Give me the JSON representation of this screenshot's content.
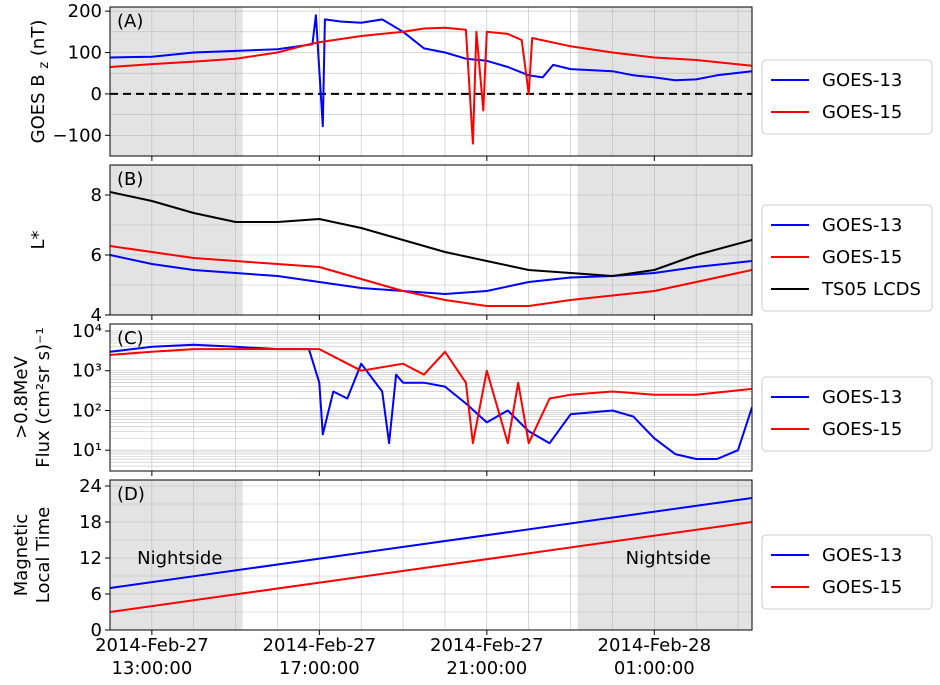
{
  "chart_data": [
    {
      "type": "line",
      "panel_label": "(A)",
      "ylabel": "GOES B",
      "ylabel_sub": "z",
      "ylabel_unit": "(nT)",
      "xlim": [
        "2014-02-27T12:00",
        "2014-02-28T03:20"
      ],
      "ylim": [
        -150,
        210
      ],
      "yticks": [
        200,
        100,
        0,
        -100
      ],
      "ytick_labels": [
        "200",
        "100",
        "0",
        "−100"
      ],
      "reference_line": {
        "y": 0,
        "style": "dashed",
        "color": "#000000"
      },
      "shaded_regions": [
        [
          "2014-02-27T12:00",
          "2014-02-27T15:10"
        ],
        [
          "2014-02-27T23:10",
          "2014-02-28T03:20"
        ]
      ],
      "legend": "right",
      "series": [
        {
          "name": "GOES-13",
          "color": "#0000ff",
          "points": [
            [
              "2014-02-27T12:00",
              88
            ],
            [
              "2014-02-27T13:00",
              90
            ],
            [
              "2014-02-27T14:00",
              100
            ],
            [
              "2014-02-27T15:00",
              104
            ],
            [
              "2014-02-27T16:00",
              108
            ],
            [
              "2014-02-27T16:50",
              120
            ],
            [
              "2014-02-27T16:55",
              190
            ],
            [
              "2014-02-27T17:05",
              -78
            ],
            [
              "2014-02-27T17:08",
              180
            ],
            [
              "2014-02-27T17:30",
              175
            ],
            [
              "2014-02-27T18:00",
              172
            ],
            [
              "2014-02-27T18:30",
              180
            ],
            [
              "2014-02-27T19:00",
              150
            ],
            [
              "2014-02-27T19:30",
              110
            ],
            [
              "2014-02-27T20:00",
              100
            ],
            [
              "2014-02-27T20:30",
              85
            ],
            [
              "2014-02-27T21:00",
              80
            ],
            [
              "2014-02-27T21:30",
              65
            ],
            [
              "2014-02-27T22:00",
              45
            ],
            [
              "2014-02-27T22:20",
              40
            ],
            [
              "2014-02-27T22:35",
              70
            ],
            [
              "2014-02-27T23:00",
              60
            ],
            [
              "2014-02-28T00:00",
              55
            ],
            [
              "2014-02-28T00:30",
              45
            ],
            [
              "2014-02-28T01:00",
              40
            ],
            [
              "2014-02-28T01:30",
              33
            ],
            [
              "2014-02-28T02:00",
              35
            ],
            [
              "2014-02-28T02:30",
              45
            ],
            [
              "2014-02-28T03:20",
              55
            ]
          ]
        },
        {
          "name": "GOES-15",
          "color": "#ff0000",
          "points": [
            [
              "2014-02-27T12:00",
              65
            ],
            [
              "2014-02-27T13:00",
              72
            ],
            [
              "2014-02-27T14:00",
              78
            ],
            [
              "2014-02-27T15:00",
              85
            ],
            [
              "2014-02-27T16:00",
              100
            ],
            [
              "2014-02-27T16:45",
              120
            ],
            [
              "2014-02-27T17:00",
              125
            ],
            [
              "2014-02-27T18:00",
              140
            ],
            [
              "2014-02-27T19:00",
              150
            ],
            [
              "2014-02-27T19:30",
              158
            ],
            [
              "2014-02-27T20:00",
              160
            ],
            [
              "2014-02-27T20:30",
              155
            ],
            [
              "2014-02-27T20:40",
              -120
            ],
            [
              "2014-02-27T20:45",
              150
            ],
            [
              "2014-02-27T20:55",
              -40
            ],
            [
              "2014-02-27T21:00",
              150
            ],
            [
              "2014-02-27T21:30",
              145
            ],
            [
              "2014-02-27T21:50",
              130
            ],
            [
              "2014-02-27T22:00",
              0
            ],
            [
              "2014-02-27T22:05",
              135
            ],
            [
              "2014-02-27T23:00",
              115
            ],
            [
              "2014-02-28T00:00",
              100
            ],
            [
              "2014-02-28T01:00",
              88
            ],
            [
              "2014-02-28T02:00",
              82
            ],
            [
              "2014-02-28T03:20",
              68
            ]
          ]
        }
      ]
    },
    {
      "type": "line",
      "panel_label": "(B)",
      "ylabel": "L*",
      "xlim": [
        "2014-02-27T12:00",
        "2014-02-28T03:20"
      ],
      "ylim": [
        4,
        9
      ],
      "yticks": [
        8,
        6,
        4
      ],
      "ytick_labels": [
        "8",
        "6",
        "4"
      ],
      "shaded_regions": [
        [
          "2014-02-27T12:00",
          "2014-02-27T15:10"
        ],
        [
          "2014-02-27T23:10",
          "2014-02-28T03:20"
        ]
      ],
      "legend": "right",
      "series": [
        {
          "name": "GOES-13",
          "color": "#0000ff",
          "points": [
            [
              "2014-02-27T12:00",
              6.0
            ],
            [
              "2014-02-27T13:00",
              5.7
            ],
            [
              "2014-02-27T14:00",
              5.5
            ],
            [
              "2014-02-27T15:00",
              5.4
            ],
            [
              "2014-02-27T16:00",
              5.3
            ],
            [
              "2014-02-27T17:00",
              5.1
            ],
            [
              "2014-02-27T18:00",
              4.9
            ],
            [
              "2014-02-27T19:00",
              4.8
            ],
            [
              "2014-02-27T20:00",
              4.7
            ],
            [
              "2014-02-27T21:00",
              4.8
            ],
            [
              "2014-02-27T22:00",
              5.1
            ],
            [
              "2014-02-27T23:00",
              5.25
            ],
            [
              "2014-02-28T00:00",
              5.3
            ],
            [
              "2014-02-28T01:00",
              5.4
            ],
            [
              "2014-02-28T02:00",
              5.6
            ],
            [
              "2014-02-28T03:20",
              5.8
            ]
          ]
        },
        {
          "name": "GOES-15",
          "color": "#ff0000",
          "points": [
            [
              "2014-02-27T12:00",
              6.3
            ],
            [
              "2014-02-27T13:00",
              6.1
            ],
            [
              "2014-02-27T14:00",
              5.9
            ],
            [
              "2014-02-27T15:00",
              5.8
            ],
            [
              "2014-02-27T16:00",
              5.7
            ],
            [
              "2014-02-27T17:00",
              5.6
            ],
            [
              "2014-02-27T18:00",
              5.2
            ],
            [
              "2014-02-27T19:00",
              4.8
            ],
            [
              "2014-02-27T20:00",
              4.5
            ],
            [
              "2014-02-27T21:00",
              4.3
            ],
            [
              "2014-02-27T22:00",
              4.3
            ],
            [
              "2014-02-27T23:00",
              4.5
            ],
            [
              "2014-02-28T00:00",
              4.65
            ],
            [
              "2014-02-28T01:00",
              4.8
            ],
            [
              "2014-02-28T02:00",
              5.1
            ],
            [
              "2014-02-28T03:20",
              5.5
            ]
          ]
        },
        {
          "name": "TS05 LCDS",
          "color": "#000000",
          "points": [
            [
              "2014-02-27T12:00",
              8.1
            ],
            [
              "2014-02-27T13:00",
              7.8
            ],
            [
              "2014-02-27T14:00",
              7.4
            ],
            [
              "2014-02-27T15:00",
              7.1
            ],
            [
              "2014-02-27T16:00",
              7.1
            ],
            [
              "2014-02-27T17:00",
              7.2
            ],
            [
              "2014-02-27T18:00",
              6.9
            ],
            [
              "2014-02-27T19:00",
              6.5
            ],
            [
              "2014-02-27T20:00",
              6.1
            ],
            [
              "2014-02-27T21:00",
              5.8
            ],
            [
              "2014-02-27T22:00",
              5.5
            ],
            [
              "2014-02-27T23:00",
              5.4
            ],
            [
              "2014-02-28T00:00",
              5.3
            ],
            [
              "2014-02-28T01:00",
              5.5
            ],
            [
              "2014-02-28T02:00",
              6.0
            ],
            [
              "2014-02-28T03:20",
              6.5
            ]
          ]
        }
      ]
    },
    {
      "type": "line",
      "panel_label": "(C)",
      "ylabel_line1": ">0.8MeV",
      "ylabel_line2": "Flux (cm²sr s)⁻¹",
      "xlim": [
        "2014-02-27T12:00",
        "2014-02-28T03:20"
      ],
      "yscale": "log",
      "ylim": [
        3,
        15000
      ],
      "yticks": [
        10000,
        1000,
        100,
        10
      ],
      "ytick_labels": [
        "10⁴",
        "10³",
        "10²",
        "10¹"
      ],
      "shaded_regions": [],
      "legend": "right",
      "series": [
        {
          "name": "GOES-13",
          "color": "#0000ff",
          "points": [
            [
              "2014-02-27T12:00",
              3000
            ],
            [
              "2014-02-27T13:00",
              4000
            ],
            [
              "2014-02-27T14:00",
              4500
            ],
            [
              "2014-02-27T15:00",
              4000
            ],
            [
              "2014-02-27T16:00",
              3500
            ],
            [
              "2014-02-27T16:45",
              3500
            ],
            [
              "2014-02-27T17:00",
              500
            ],
            [
              "2014-02-27T17:05",
              25
            ],
            [
              "2014-02-27T17:20",
              300
            ],
            [
              "2014-02-27T17:40",
              200
            ],
            [
              "2014-02-27T18:00",
              1500
            ],
            [
              "2014-02-27T18:30",
              300
            ],
            [
              "2014-02-27T18:40",
              15
            ],
            [
              "2014-02-27T18:50",
              800
            ],
            [
              "2014-02-27T19:00",
              500
            ],
            [
              "2014-02-27T19:30",
              500
            ],
            [
              "2014-02-27T20:00",
              400
            ],
            [
              "2014-02-27T20:30",
              150
            ],
            [
              "2014-02-27T21:00",
              50
            ],
            [
              "2014-02-27T21:30",
              100
            ],
            [
              "2014-02-27T22:00",
              30
            ],
            [
              "2014-02-27T22:30",
              15
            ],
            [
              "2014-02-27T23:00",
              80
            ],
            [
              "2014-02-28T00:00",
              100
            ],
            [
              "2014-02-28T00:30",
              70
            ],
            [
              "2014-02-28T01:00",
              20
            ],
            [
              "2014-02-28T01:30",
              8
            ],
            [
              "2014-02-28T02:00",
              6
            ],
            [
              "2014-02-28T02:30",
              6
            ],
            [
              "2014-02-28T03:00",
              10
            ],
            [
              "2014-02-28T03:20",
              120
            ]
          ]
        },
        {
          "name": "GOES-15",
          "color": "#ff0000",
          "points": [
            [
              "2014-02-27T12:00",
              2500
            ],
            [
              "2014-02-27T13:00",
              3000
            ],
            [
              "2014-02-27T14:00",
              3500
            ],
            [
              "2014-02-27T15:00",
              3500
            ],
            [
              "2014-02-27T16:00",
              3500
            ],
            [
              "2014-02-27T17:00",
              3500
            ],
            [
              "2014-02-27T18:00",
              1000
            ],
            [
              "2014-02-27T19:00",
              1500
            ],
            [
              "2014-02-27T19:30",
              800
            ],
            [
              "2014-02-27T20:00",
              3000
            ],
            [
              "2014-02-27T20:30",
              500
            ],
            [
              "2014-02-27T20:40",
              15
            ],
            [
              "2014-02-27T21:00",
              1000
            ],
            [
              "2014-02-27T21:30",
              15
            ],
            [
              "2014-02-27T21:45",
              500
            ],
            [
              "2014-02-27T22:00",
              15
            ],
            [
              "2014-02-27T22:30",
              200
            ],
            [
              "2014-02-27T23:00",
              250
            ],
            [
              "2014-02-28T00:00",
              300
            ],
            [
              "2014-02-28T01:00",
              250
            ],
            [
              "2014-02-28T02:00",
              250
            ],
            [
              "2014-02-28T03:20",
              350
            ]
          ]
        }
      ]
    },
    {
      "type": "line",
      "panel_label": "(D)",
      "ylabel_line1": "Magnetic",
      "ylabel_line2": "Local Time",
      "xlim": [
        "2014-02-27T12:00",
        "2014-02-28T03:20"
      ],
      "ylim": [
        0,
        25
      ],
      "yticks": [
        24,
        18,
        12,
        6,
        0
      ],
      "ytick_labels": [
        "24",
        "18",
        "12",
        "6",
        "0"
      ],
      "shaded_regions": [
        [
          "2014-02-27T12:00",
          "2014-02-27T15:10"
        ],
        [
          "2014-02-27T23:10",
          "2014-02-28T03:20"
        ]
      ],
      "annotations": [
        {
          "text": "Nightside",
          "x": "2014-02-27T13:40",
          "y": 12
        },
        {
          "text": "Nightside",
          "x": "2014-02-28T01:20",
          "y": 12
        }
      ],
      "legend": "right",
      "series": [
        {
          "name": "GOES-13",
          "color": "#0000ff",
          "points": [
            [
              "2014-02-27T12:00",
              7.0
            ],
            [
              "2014-02-28T03:20",
              22.0
            ]
          ]
        },
        {
          "name": "GOES-15",
          "color": "#ff0000",
          "points": [
            [
              "2014-02-27T12:00",
              3.0
            ],
            [
              "2014-02-28T03:20",
              18.0
            ]
          ]
        }
      ]
    }
  ],
  "x_axis": {
    "ticks": [
      "2014-02-27T13:00",
      "2014-02-27T17:00",
      "2014-02-27T21:00",
      "2014-02-28T01:00"
    ],
    "tick_labels_line1": [
      "2014-Feb-27",
      "2014-Feb-27",
      "2014-Feb-27",
      "2014-Feb-28"
    ],
    "tick_labels_line2": [
      "13:00:00",
      "17:00:00",
      "21:00:00",
      "01:00:00"
    ],
    "minor_grid_every_hours": 1
  }
}
